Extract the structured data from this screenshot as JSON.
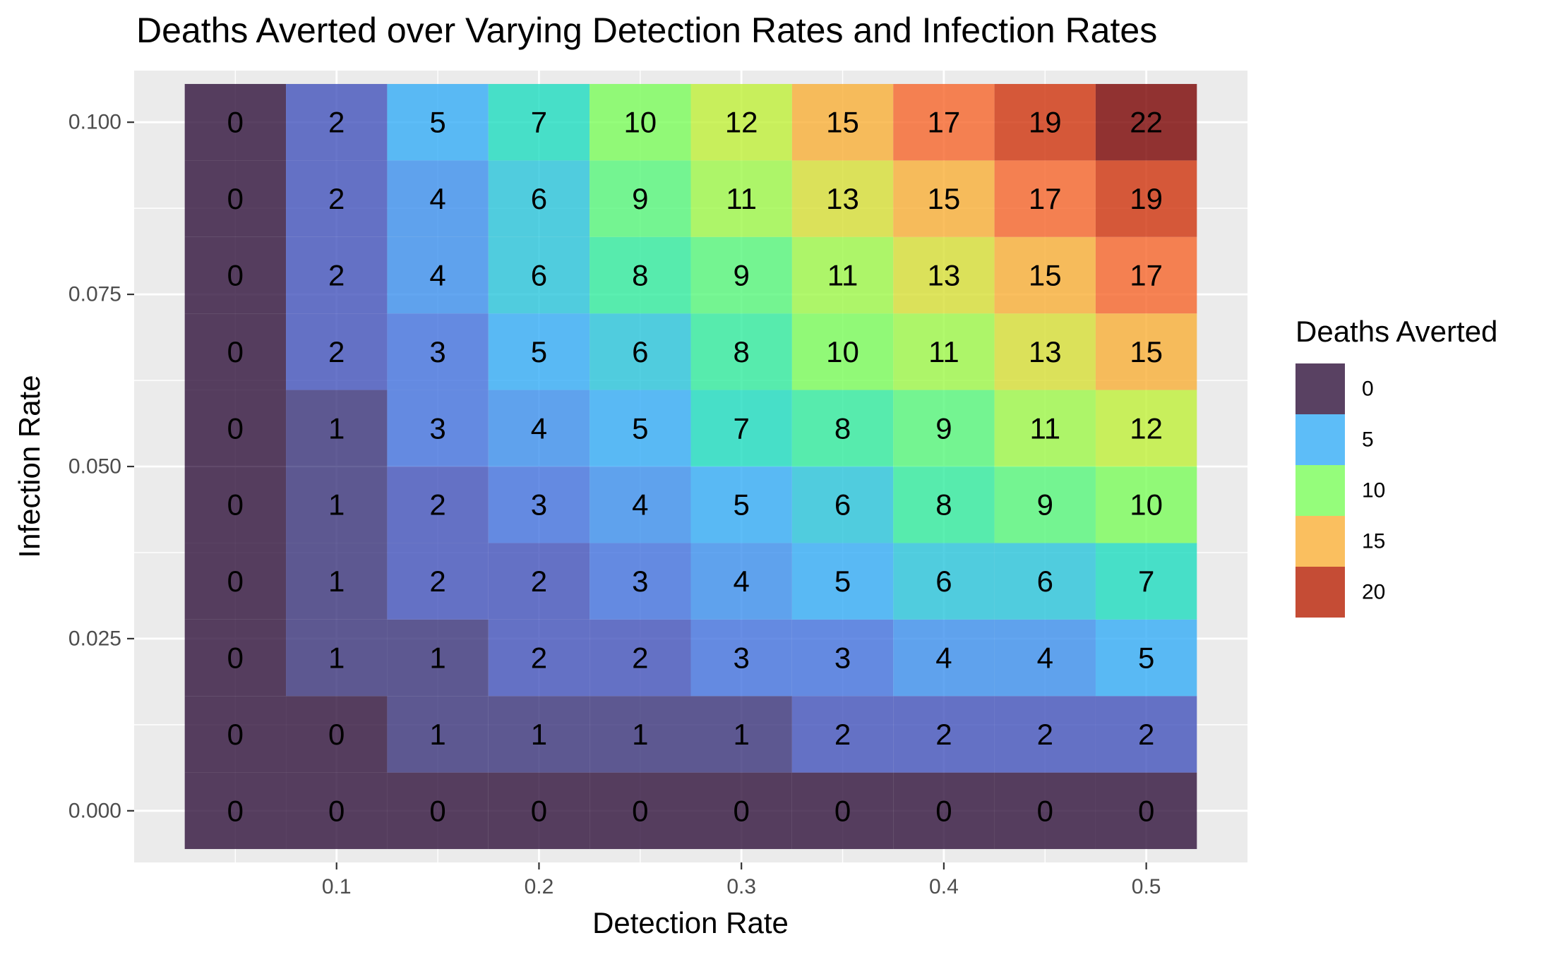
{
  "chart_data": {
    "type": "heatmap",
    "title": "Deaths Averted over Varying Detection Rates and Infection Rates",
    "xlabel": "Detection Rate",
    "ylabel": "Infection Rate",
    "x": [
      0.05,
      0.1,
      0.15,
      0.2,
      0.25,
      0.3,
      0.35,
      0.4,
      0.45,
      0.5
    ],
    "y": [
      0.0,
      0.01111,
      0.02222,
      0.03333,
      0.04444,
      0.05556,
      0.06667,
      0.07778,
      0.08889,
      0.1
    ],
    "x_ticks": [
      0.1,
      0.2,
      0.3,
      0.4,
      0.5
    ],
    "x_tick_labels": [
      "0.1",
      "0.2",
      "0.3",
      "0.4",
      "0.5"
    ],
    "y_ticks": [
      0.0,
      0.025,
      0.05,
      0.075,
      0.1
    ],
    "y_tick_labels": [
      "0.000",
      "0.025",
      "0.050",
      "0.075",
      "0.100"
    ],
    "xlim": [
      0.0,
      0.55
    ],
    "ylim": [
      -0.0075,
      0.1075
    ],
    "values": [
      [
        0,
        0,
        0,
        0,
        0,
        0,
        0,
        0,
        0,
        0
      ],
      [
        0,
        0,
        1,
        1,
        1,
        1,
        2,
        2,
        2,
        2
      ],
      [
        0,
        1,
        1,
        2,
        2,
        3,
        3,
        4,
        4,
        5
      ],
      [
        0,
        1,
        2,
        2,
        3,
        4,
        5,
        6,
        6,
        7
      ],
      [
        0,
        1,
        2,
        3,
        4,
        5,
        6,
        8,
        9,
        10
      ],
      [
        0,
        1,
        3,
        4,
        5,
        7,
        8,
        9,
        11,
        12
      ],
      [
        0,
        2,
        3,
        5,
        6,
        8,
        10,
        11,
        13,
        15
      ],
      [
        0,
        2,
        4,
        6,
        8,
        9,
        11,
        13,
        15,
        17
      ],
      [
        0,
        2,
        4,
        6,
        9,
        11,
        13,
        15,
        17,
        19
      ],
      [
        0,
        2,
        5,
        7,
        10,
        12,
        15,
        17,
        19,
        22
      ]
    ],
    "value_range": [
      0,
      22
    ],
    "colorscale": [
      "#30123b",
      "#4662d7",
      "#36aaf9",
      "#1ae4b6",
      "#72fe5e",
      "#c7ef34",
      "#fabb39",
      "#f6612a",
      "#c42503",
      "#7a0403"
    ],
    "cell_opacity": 0.8,
    "grid": true,
    "legend": {
      "title": "Deaths Averted",
      "position": "right",
      "items": [
        {
          "label": "0",
          "value": 0
        },
        {
          "label": "5",
          "value": 5
        },
        {
          "label": "10",
          "value": 10
        },
        {
          "label": "15",
          "value": 15
        },
        {
          "label": "20",
          "value": 20
        }
      ]
    },
    "panel_color": "#ebebeb",
    "gridline_color": "#ffffff",
    "axis_text_color": "#4d4d4d"
  }
}
